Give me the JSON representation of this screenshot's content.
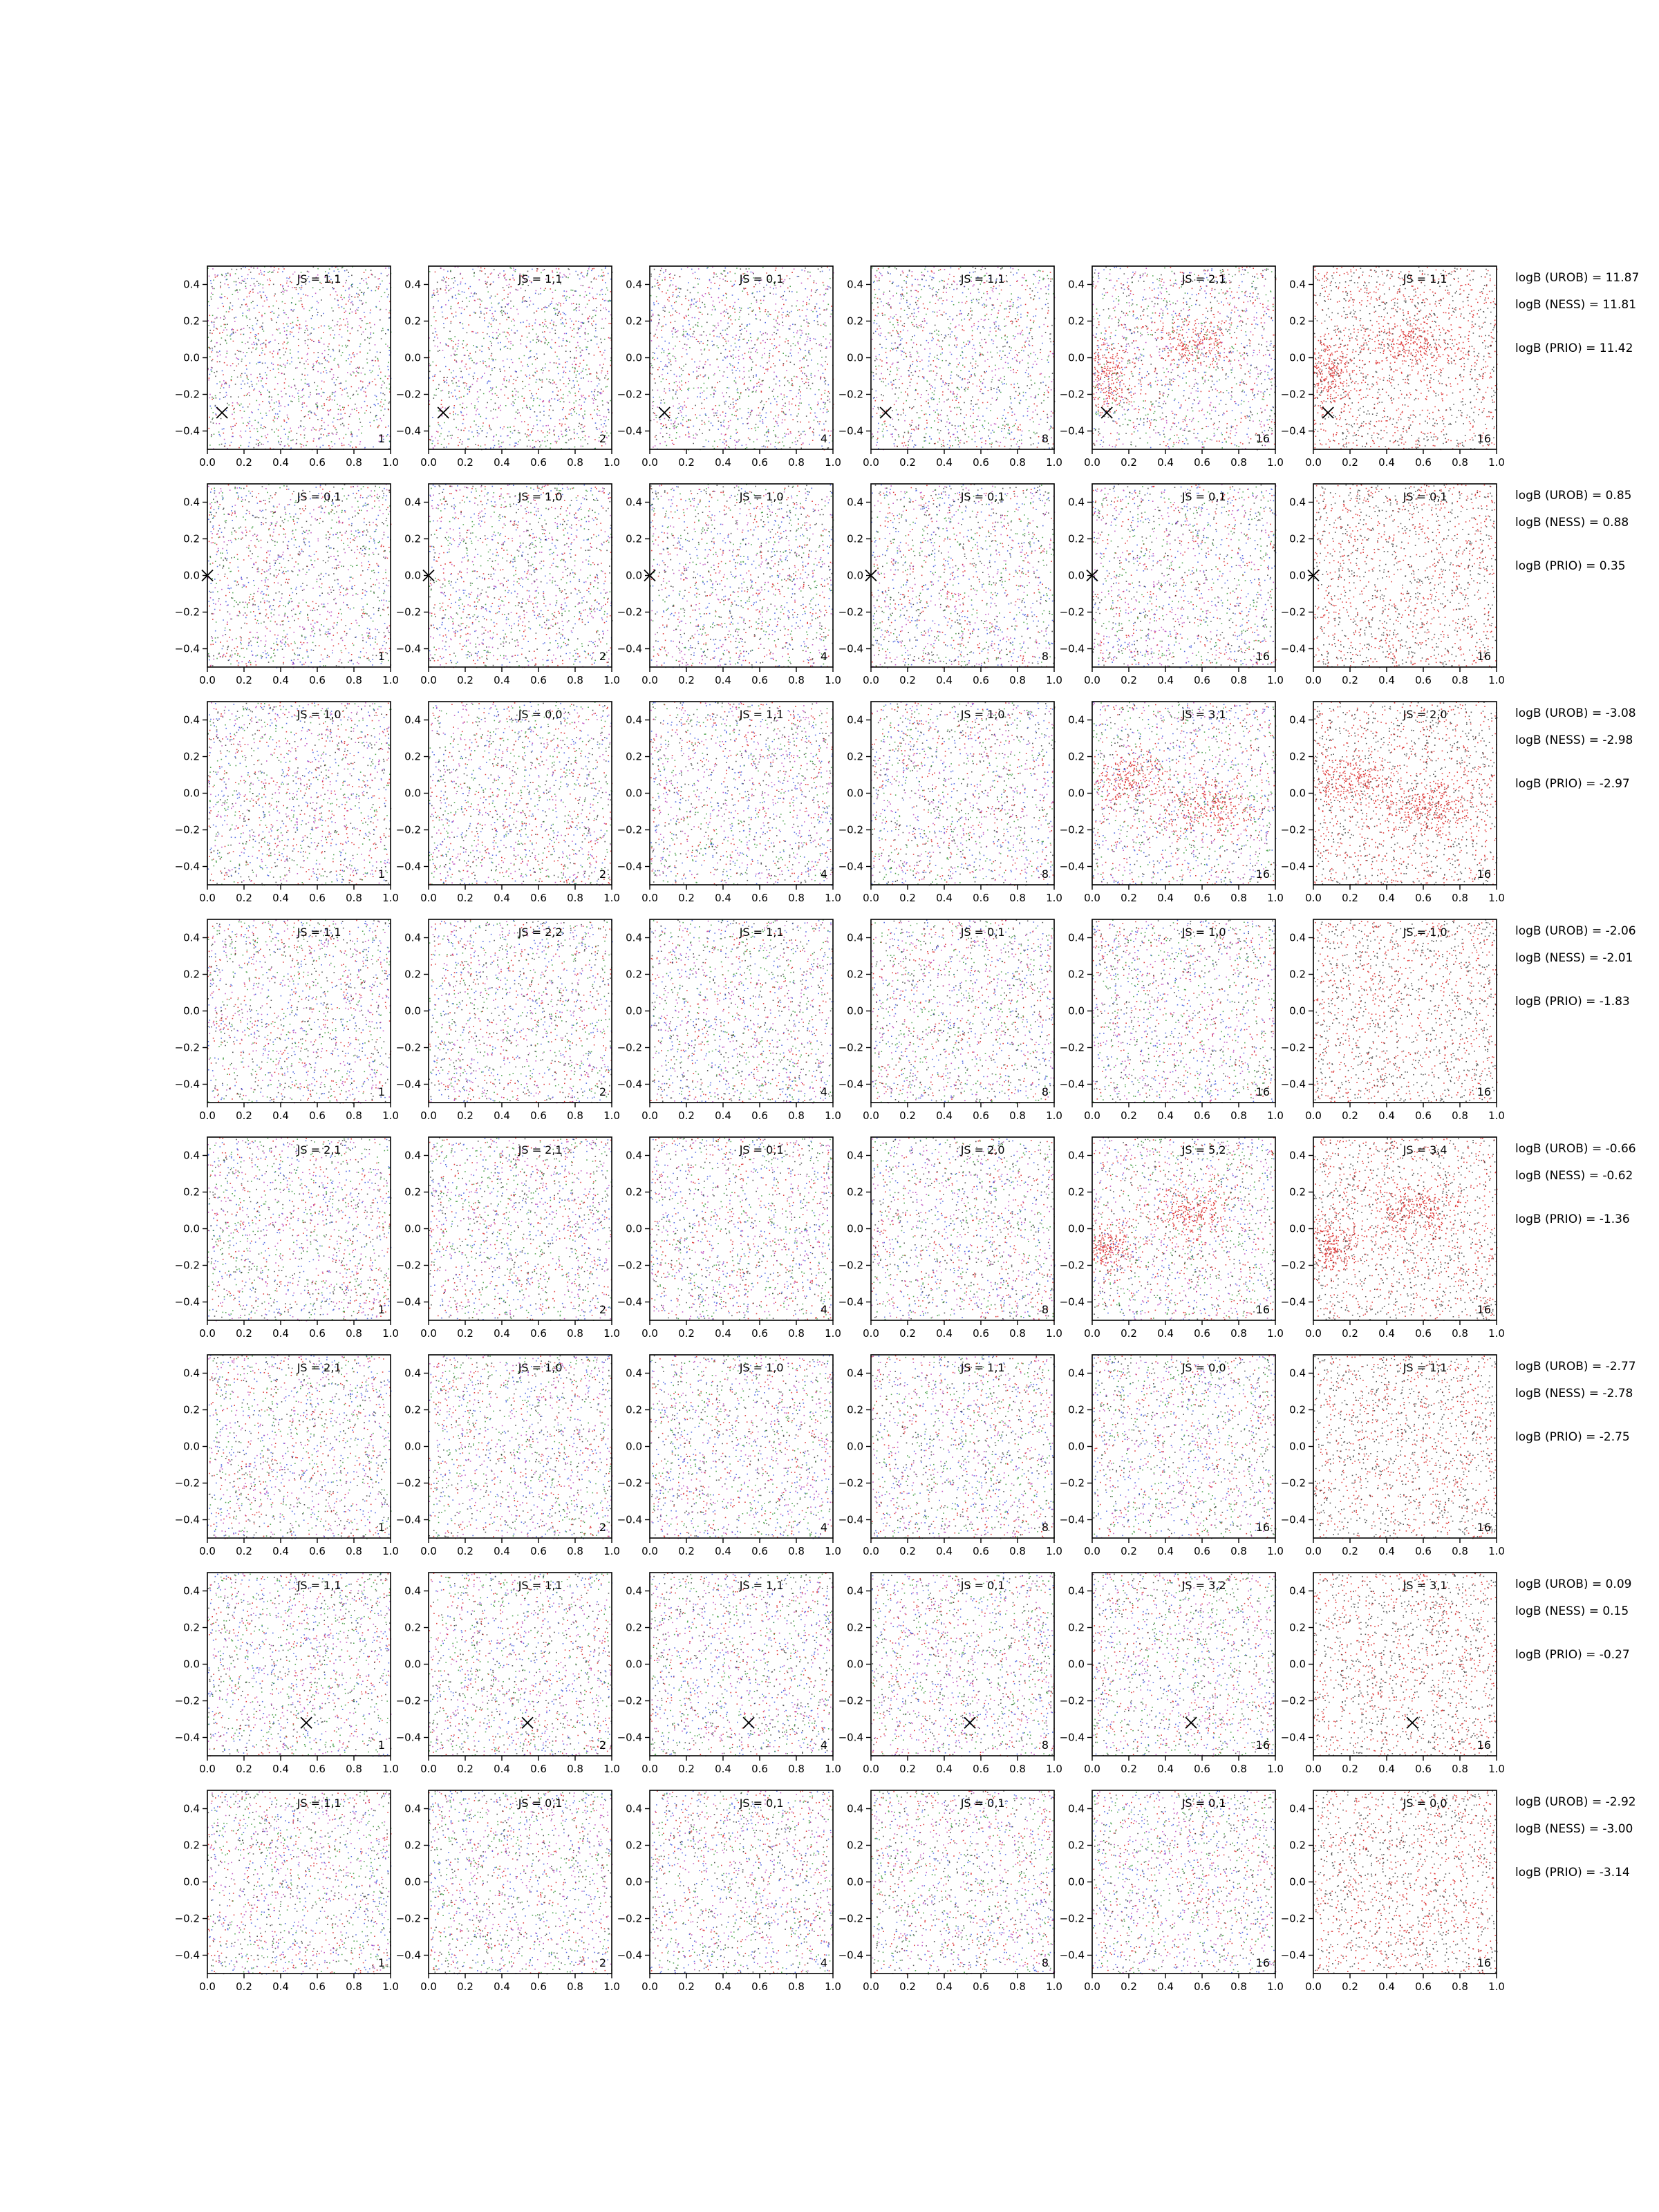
{
  "chart_data": {
    "type": "scatter",
    "grid": false,
    "xlim": [
      0.0,
      1.0
    ],
    "ylim": [
      -0.5,
      0.5
    ],
    "x_ticks": [
      "0.0",
      "0.2",
      "0.4",
      "0.6",
      "0.8",
      "1.0"
    ],
    "y_ticks": [
      "−0.4",
      "−0.2",
      "0.0",
      "0.2",
      "0.4"
    ],
    "column_channels": [
      "1",
      "2",
      "4",
      "8",
      "16",
      "16"
    ],
    "colors": {
      "multi": [
        "#d40000",
        "#1f3fd8",
        "#1b8a1b",
        "#202020",
        "#b02ab0"
      ],
      "last_column": [
        "#d40000",
        "#202020"
      ],
      "marker": "#000000"
    },
    "rows": [
      {
        "js": [
          "JS = 1,1",
          "JS = 1,1",
          "JS = 0,1",
          "JS = 1,1",
          "JS = 2,1",
          "JS = 1,1"
        ],
        "bayes": [
          "logB (UROB) = 11.87",
          "logB (NESS) = 11.81",
          "logB (PRIO) = 11.42"
        ],
        "marker": [
          0.08,
          -0.3
        ]
      },
      {
        "js": [
          "JS = 0,1",
          "JS = 1,0",
          "JS = 1,0",
          "JS = 0,1",
          "JS = 0,1",
          "JS = 0,1"
        ],
        "bayes": [
          "logB (UROB) = 0.85",
          "logB (NESS) = 0.88",
          "logB (PRIO) = 0.35"
        ],
        "marker": [
          0.0,
          0.0
        ]
      },
      {
        "js": [
          "JS = 1,0",
          "JS = 0,0",
          "JS = 1,1",
          "JS = 1,0",
          "JS = 3,1",
          "JS = 2,0"
        ],
        "bayes": [
          "logB (UROB) = -3.08",
          "logB (NESS) = -2.98",
          "logB (PRIO) = -2.97"
        ],
        "marker": null
      },
      {
        "js": [
          "JS = 1,1",
          "JS = 2,2",
          "JS = 1,1",
          "JS = 0,1",
          "JS = 1,0",
          "JS = 1,0"
        ],
        "bayes": [
          "logB (UROB) = -2.06",
          "logB (NESS) = -2.01",
          "logB (PRIO) = -1.83"
        ],
        "marker": null
      },
      {
        "js": [
          "JS = 2,1",
          "JS = 2,1",
          "JS = 0,1",
          "JS = 2,0",
          "JS = 5,2",
          "JS = 3,4"
        ],
        "bayes": [
          "logB (UROB) = -0.66",
          "logB (NESS) = -0.62",
          "logB (PRIO) = -1.36"
        ],
        "marker": null
      },
      {
        "js": [
          "JS = 2,1",
          "JS = 1,0",
          "JS = 1,0",
          "JS = 1,1",
          "JS = 0,0",
          "JS = 1,1"
        ],
        "bayes": [
          "logB (UROB) = -2.77",
          "logB (NESS) = -2.78",
          "logB (PRIO) = -2.75"
        ],
        "marker": null
      },
      {
        "js": [
          "JS = 1,1",
          "JS = 1,1",
          "JS = 1,1",
          "JS = 0,1",
          "JS = 3,2",
          "JS = 3,1"
        ],
        "bayes": [
          "logB (UROB) = 0.09",
          "logB (NESS) = 0.15",
          "logB (PRIO) = -0.27"
        ],
        "marker": [
          0.54,
          -0.32
        ]
      },
      {
        "js": [
          "JS = 1,1",
          "JS = 0,1",
          "JS = 0,1",
          "JS = 0,1",
          "JS = 0,1",
          "JS = 0,0"
        ],
        "bayes": [
          "logB (UROB) = -2.92",
          "logB (NESS) = -3.00",
          "logB (PRIO) = -3.14"
        ],
        "marker": null
      }
    ],
    "source_features": [
      {
        "row": 0,
        "x": 0.55,
        "y": 0.08,
        "spread_x": 0.12,
        "spread_y": 0.07
      },
      {
        "row": 0,
        "x": 0.08,
        "y": -0.1,
        "spread_x": 0.08,
        "spread_y": 0.1
      },
      {
        "row": 2,
        "x": 0.2,
        "y": 0.08,
        "spread_x": 0.12,
        "spread_y": 0.08
      },
      {
        "row": 2,
        "x": 0.65,
        "y": -0.08,
        "spread_x": 0.12,
        "spread_y": 0.07
      },
      {
        "row": 4,
        "x": 0.55,
        "y": 0.1,
        "spread_x": 0.12,
        "spread_y": 0.08
      },
      {
        "row": 4,
        "x": 0.08,
        "y": -0.1,
        "spread_x": 0.08,
        "spread_y": 0.07
      }
    ]
  }
}
